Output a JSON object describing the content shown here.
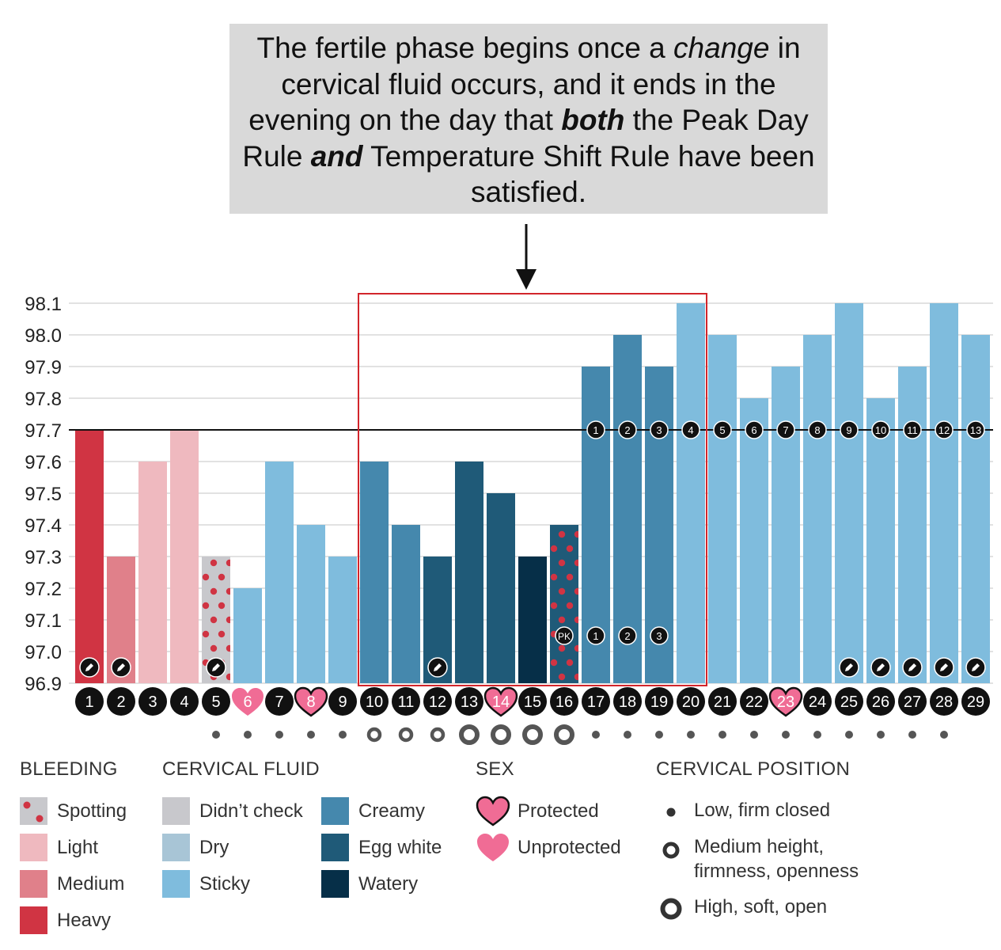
{
  "callout": {
    "p1": "The fertile phase begins once a ",
    "p2": "change",
    "p3": " in cervical fluid occurs, and it ends in the evening on the day that ",
    "p4": "both",
    "p5": " the Peak Day Rule ",
    "p6": "and",
    "p7": " Temperature Shift Rule have been satisfied."
  },
  "chart_data": {
    "type": "bar",
    "y_ticks": [
      "96.9",
      "97.0",
      "97.1",
      "97.2",
      "97.3",
      "97.4",
      "97.5",
      "97.6",
      "97.7",
      "97.8",
      "97.9",
      "98.0",
      "98.1"
    ],
    "ylim": [
      96.9,
      98.1
    ],
    "coverline": 97.7,
    "categories": [
      "1",
      "2",
      "3",
      "4",
      "5",
      "6",
      "7",
      "8",
      "9",
      "10",
      "11",
      "12",
      "13",
      "14",
      "15",
      "16",
      "17",
      "18",
      "19",
      "20",
      "21",
      "22",
      "23",
      "24",
      "25",
      "26",
      "27",
      "28",
      "29"
    ],
    "values": [
      97.7,
      97.3,
      97.6,
      97.7,
      97.3,
      97.2,
      97.6,
      97.4,
      97.3,
      97.6,
      97.4,
      97.3,
      97.6,
      97.5,
      97.3,
      97.4,
      97.9,
      98.0,
      97.9,
      98.1,
      98.0,
      97.8,
      97.9,
      98.0,
      98.1,
      97.8,
      97.9,
      98.1,
      98.0
    ],
    "fill_type": [
      "heavy",
      "medium",
      "light",
      "light",
      "spotting",
      "sticky",
      "sticky",
      "sticky",
      "sticky",
      "creamy",
      "creamy",
      "eggwhite",
      "eggwhite",
      "eggwhite",
      "watery",
      "eggwhite_spotting",
      "creamy",
      "creamy",
      "creamy",
      "sticky",
      "sticky",
      "sticky",
      "sticky",
      "sticky",
      "sticky",
      "sticky",
      "sticky",
      "sticky",
      "sticky"
    ],
    "pencil_days": [
      1,
      2,
      5,
      12,
      25,
      26,
      27,
      28,
      29
    ],
    "sex": {
      "6": "unprotected",
      "8": "protected",
      "14": "protected",
      "23": "protected"
    },
    "cervical_position": [
      "low",
      "low",
      "low",
      "low",
      "low",
      "medium",
      "medium",
      "medium",
      "high",
      "high",
      "high",
      "high",
      "low",
      "low",
      "low",
      "low",
      "low",
      "low",
      "low",
      "low",
      "low",
      "low",
      "low",
      "low"
    ],
    "cervical_position_start_day": 5,
    "temp_shift_labels": [
      "1",
      "2",
      "3",
      "4",
      "5",
      "6",
      "7",
      "8",
      "9",
      "10",
      "11",
      "12",
      "13"
    ],
    "temp_shift_start_day": 17,
    "peak_label": "PK",
    "peak_day": 16,
    "peak_count_labels": [
      "1",
      "2",
      "3"
    ],
    "fertile_window_days": [
      10,
      20
    ]
  },
  "colors": {
    "heavy": "#d03443",
    "medium": "#e0808a",
    "light": "#efb9bf",
    "spotting_bg": "#c8c8cc",
    "spotting_dot": "#d03443",
    "didnt_check": "#c8c8cc",
    "dry": "#a8c5d6",
    "sticky": "#7fbcdd",
    "creamy": "#4588ad",
    "eggwhite": "#1f5a78",
    "watery": "#062f48",
    "heart": "#f06c95",
    "window": "#d2252b"
  },
  "legend": {
    "bleeding": {
      "title": "BLEEDING",
      "items": [
        "Spotting",
        "Light",
        "Medium",
        "Heavy"
      ]
    },
    "cervical_fluid": {
      "title": "CERVICAL FLUID",
      "items": [
        "Didn’t check",
        "Dry",
        "Sticky",
        "Creamy",
        "Egg white",
        "Watery"
      ]
    },
    "sex": {
      "title": "SEX",
      "items": [
        "Protected",
        "Unprotected"
      ]
    },
    "cervical_position": {
      "title": "CERVICAL POSITION",
      "items": [
        "Low, firm closed",
        "Medium height, firmness, openness",
        "High, soft, open"
      ]
    }
  },
  "icons": {
    "pencil": "pencil-icon",
    "heart": "heart-icon",
    "arrow": "arrow-down-icon"
  }
}
